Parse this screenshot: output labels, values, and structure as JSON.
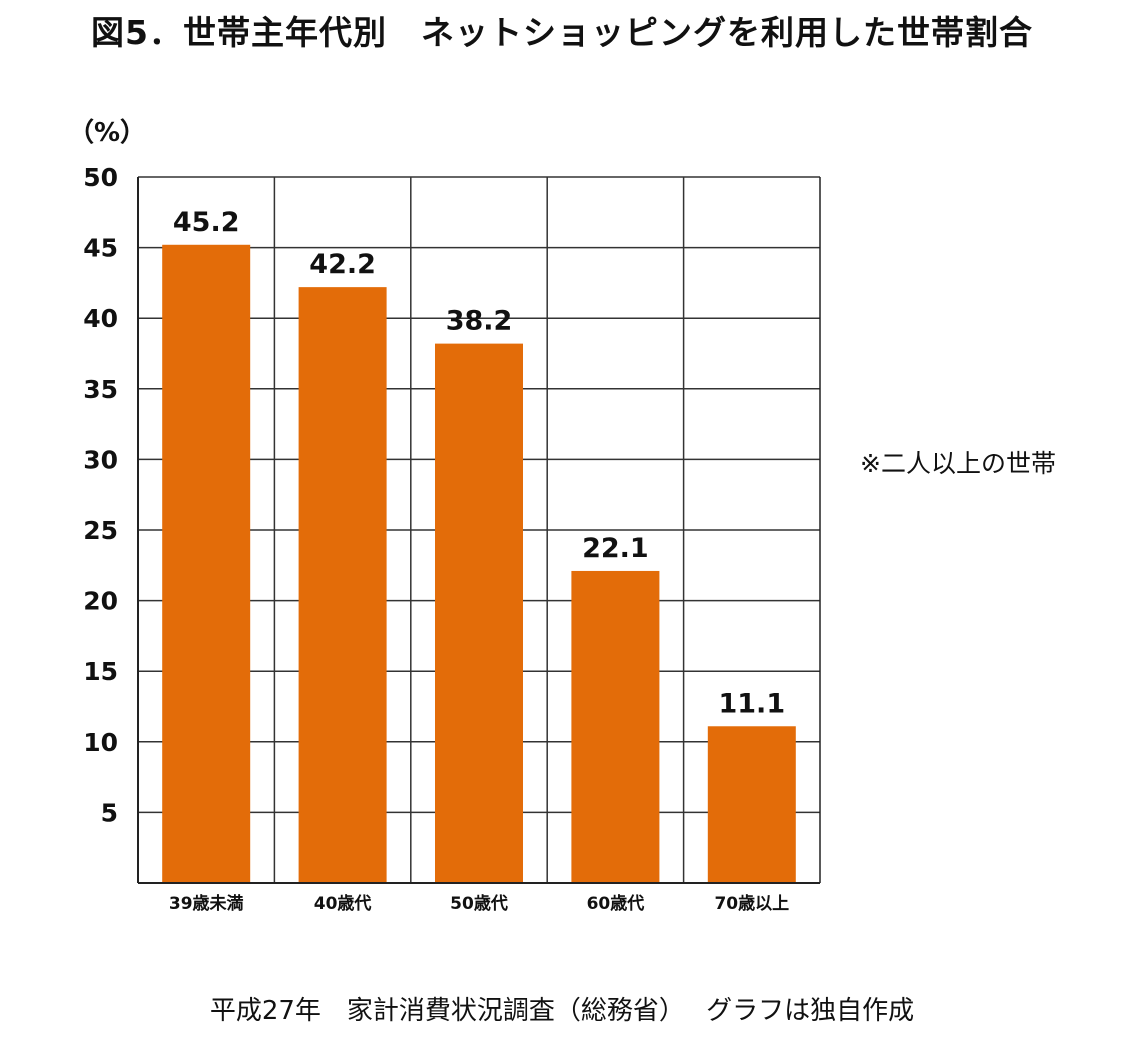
{
  "chart_data": {
    "type": "bar",
    "title": "図5．世帯主年代別　ネットショッピングを利用した世帯割合",
    "ylabel": "（%）",
    "xlabel": "",
    "categories": [
      "39歳未満",
      "40歳代",
      "50歳代",
      "60歳代",
      "70歳以上"
    ],
    "values": [
      45.2,
      42.2,
      38.2,
      22.1,
      11.1
    ],
    "data_labels": [
      "45.2",
      "42.2",
      "38.2",
      "22.1",
      "11.1"
    ],
    "ylim": [
      0,
      50
    ],
    "yticks": [
      5,
      10,
      15,
      20,
      25,
      30,
      35,
      40,
      45,
      50
    ],
    "grid": true,
    "bar_color": "#E36C09",
    "note": "※二人以上の世帯",
    "source": "平成27年　家計消費状況調査（総務省）　 グラフは独自作成"
  }
}
